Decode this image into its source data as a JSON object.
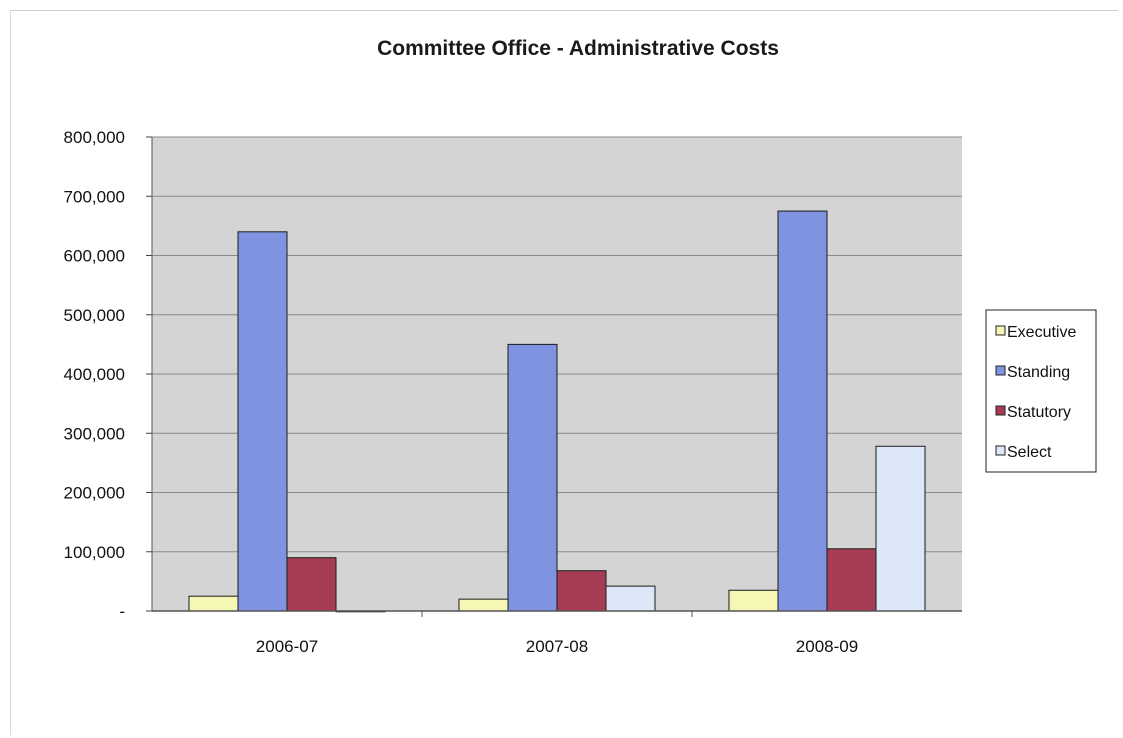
{
  "chart_data": {
    "type": "bar",
    "title": "Committee Office - Administrative Costs",
    "xlabel": "",
    "ylabel": "",
    "categories": [
      "2006-07",
      "2007-08",
      "2008-09"
    ],
    "ylim": [
      0,
      800000
    ],
    "yticks": [
      0,
      100000,
      200000,
      300000,
      400000,
      500000,
      600000,
      700000,
      800000
    ],
    "ytick_labels": [
      "-",
      "100,000",
      "200,000",
      "300,000",
      "400,000",
      "500,000",
      "600,000",
      "700,000",
      "800,000"
    ],
    "grid": true,
    "legend_position": "right",
    "series": [
      {
        "name": "Executive",
        "color": "#f7f7b5",
        "values": [
          25000,
          20000,
          35000
        ]
      },
      {
        "name": "Standing",
        "color": "#7f93e0",
        "values": [
          640000,
          450000,
          675000
        ]
      },
      {
        "name": "Statutory",
        "color": "#a63d55",
        "values": [
          90000,
          68000,
          105000
        ]
      },
      {
        "name": "Select",
        "color": "#dce8f7",
        "values": [
          0,
          42000,
          278000
        ]
      }
    ]
  },
  "colors": {
    "plot_background": "#d4d4d4",
    "grid": "#8a8a8a"
  }
}
